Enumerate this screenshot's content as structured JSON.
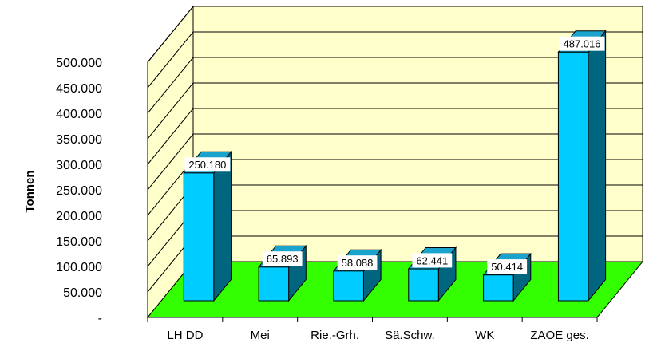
{
  "chart_data": {
    "type": "bar",
    "style": "3d-column",
    "title": "",
    "xlabel": "",
    "ylabel": "Tonnen",
    "categories": [
      "LH DD",
      "Mei",
      "Rie.-Grh.",
      "Sä.Schw.",
      "WK",
      "ZAOE ges."
    ],
    "values": [
      250180,
      65893,
      58088,
      62441,
      50414,
      487016
    ],
    "data_labels": [
      "250.180",
      "65.893",
      "58.088",
      "62.441",
      "50.414",
      "487.016"
    ],
    "ylim": [
      0,
      500000
    ],
    "y_ticks": [
      0,
      50000,
      100000,
      150000,
      200000,
      250000,
      300000,
      350000,
      400000,
      450000,
      500000
    ],
    "y_tick_labels": [
      "-",
      "50.000",
      "100.000",
      "150.000",
      "200.000",
      "250.000",
      "300.000",
      "350.000",
      "400.000",
      "450.000",
      "500.000"
    ],
    "grid": true,
    "legend": "none",
    "colors": {
      "back_wall": "#FFFFCC",
      "floor": "#33FF00",
      "bar_front": "#00CCFF",
      "bar_top": "#1AA3CC",
      "bar_side": "#006680",
      "grid": "#000000"
    }
  }
}
